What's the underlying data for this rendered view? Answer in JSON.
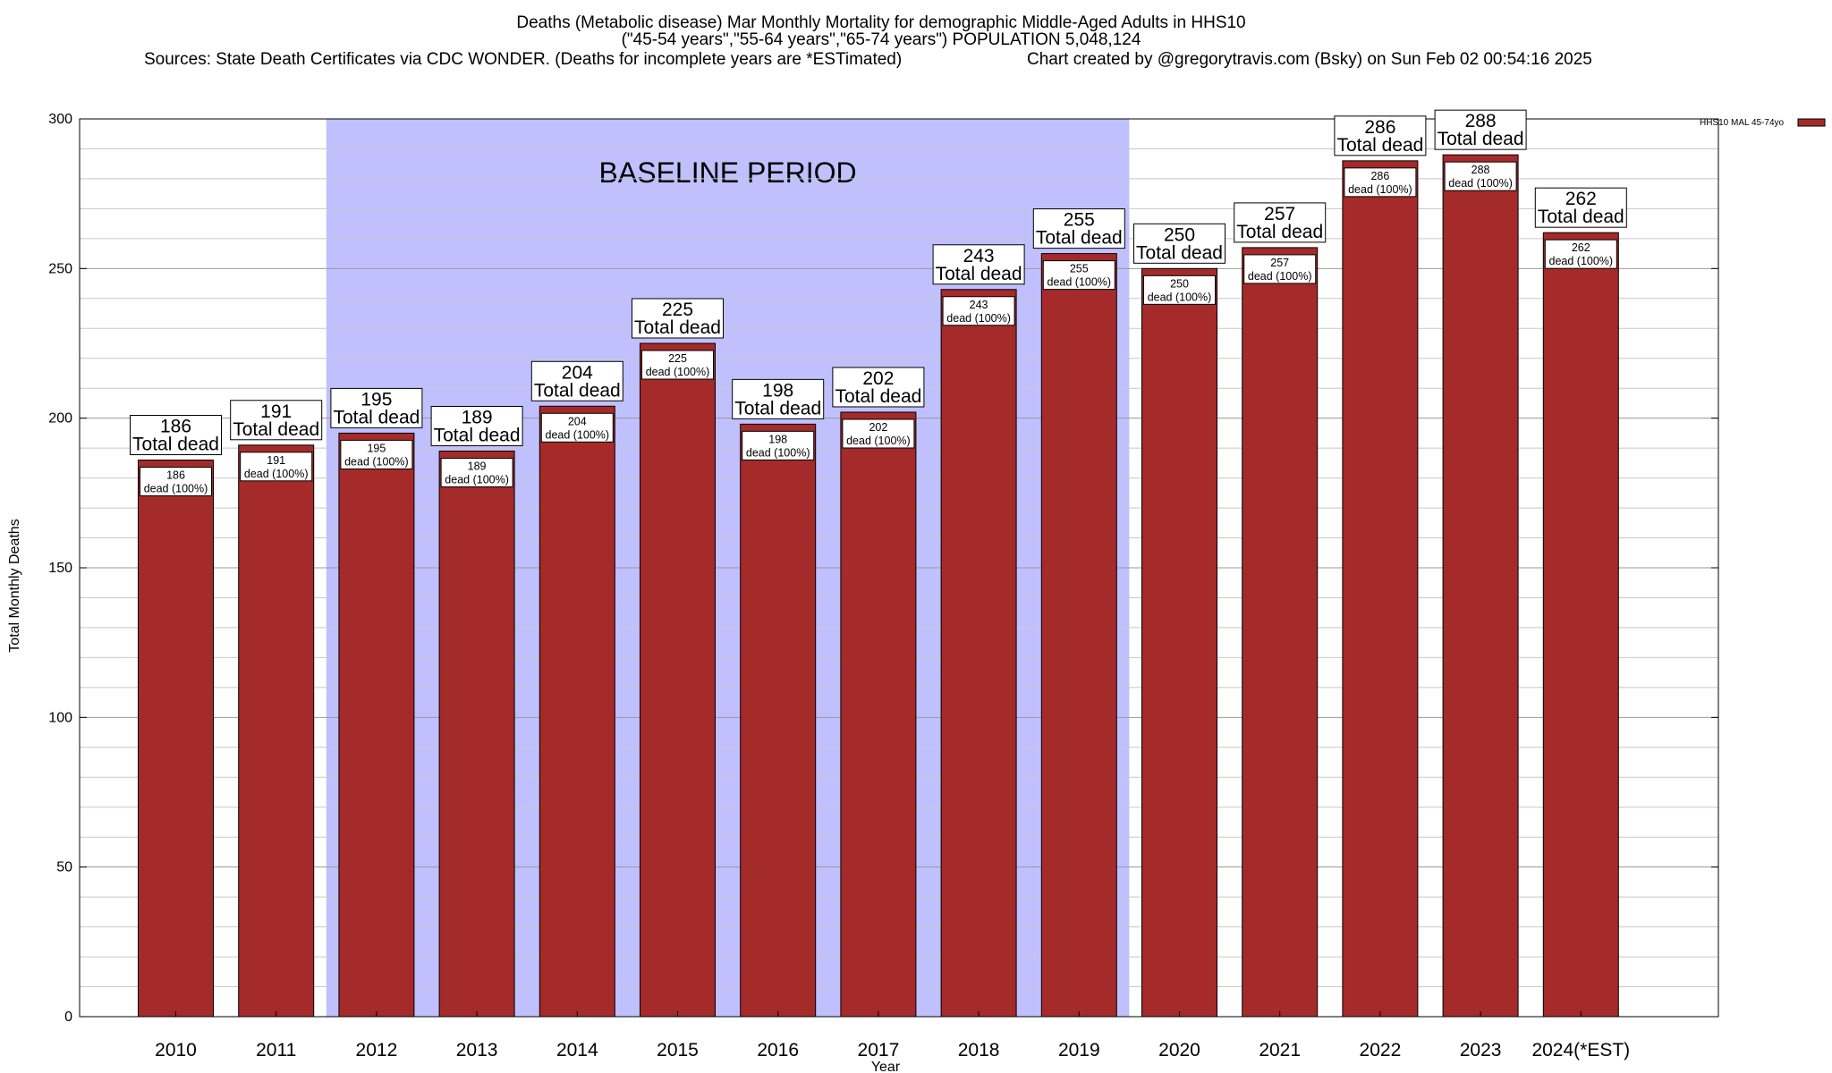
{
  "chart_data": {
    "type": "bar",
    "title_lines": [
      "Deaths (Metabolic disease) Mar Monthly Mortality for demographic Middle-Aged Adults in HHS10",
      "(\"45-54 years\",\"55-64 years\",\"65-74 years\") POPULATION 5,048,124",
      "Sources: State Death Certificates via CDC WONDER. (Deaths for incomplete years are *ESTimated)",
      "Chart created by @gregorytravis.com (Bsky) on Sun Feb 02 00:54:16 2025"
    ],
    "xlabel": "Year",
    "ylabel": "Total Monthly Deaths",
    "ylim": [
      0,
      300
    ],
    "yticks": [
      0,
      50,
      100,
      150,
      200,
      250,
      300
    ],
    "grid": true,
    "categories": [
      "2010",
      "2011",
      "2012",
      "2013",
      "2014",
      "2015",
      "2016",
      "2017",
      "2018",
      "2019",
      "2020",
      "2021",
      "2022",
      "2023",
      "2024(*EST)"
    ],
    "series": [
      {
        "name": "HHS10 MAL 45-74yo",
        "color": "#a52a2a",
        "values": [
          186,
          191,
          195,
          189,
          204,
          225,
          198,
          202,
          243,
          255,
          250,
          257,
          286,
          288,
          262
        ]
      }
    ],
    "bar_label_top_suffix": "Total dead",
    "bar_label_inner_suffix": "dead (100%)",
    "baseline_period": {
      "label": "BASELINE PERIOD",
      "start": "2012",
      "end": "2019",
      "color": "#c0c0ff"
    },
    "legend_position": "top-right"
  }
}
